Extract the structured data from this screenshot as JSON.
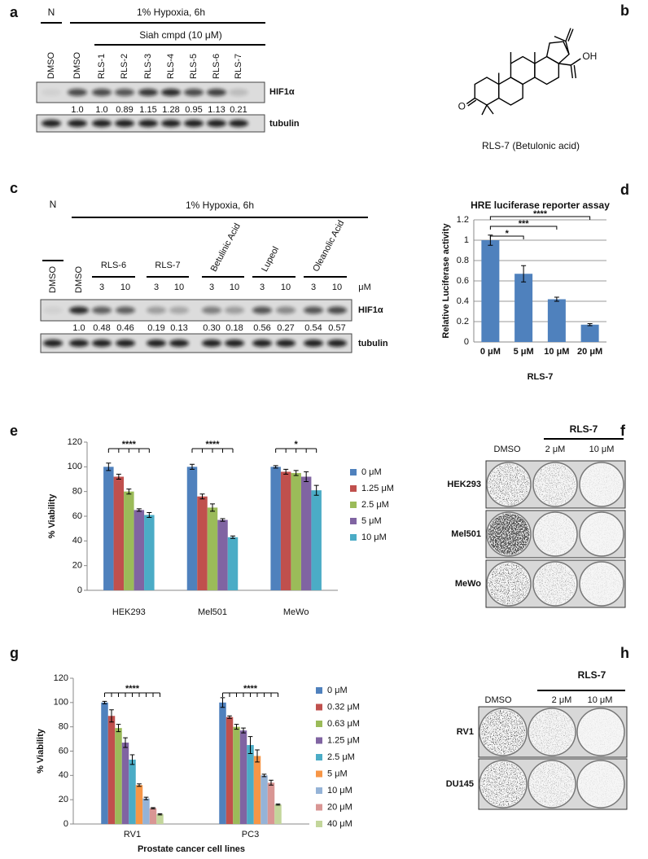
{
  "panels": {
    "a": {
      "label": "a",
      "control": "N",
      "condition": "1%  Hypoxia, 6h",
      "treatment": "Siah   cmpd   (10 μM)",
      "lanes": [
        "DMSO",
        "DMSO",
        "RLS-1",
        "RLS-2",
        "RLS-3",
        "RLS-4",
        "RLS-5",
        "RLS-6",
        "RLS-7"
      ],
      "rows": [
        "HIF1α",
        "tubulin"
      ],
      "quantification": [
        "1.0",
        "1.0",
        "0.89",
        "1.15",
        "1.28",
        "0.95",
        "1.13",
        "0.21"
      ]
    },
    "b": {
      "label": "b",
      "atoms": [
        "OH",
        "O"
      ],
      "caption": "RLS-7 (Betulonic acid)"
    },
    "c": {
      "label": "c",
      "control": "N",
      "condition": "1%  Hypoxia, 6h",
      "lanes": [
        "DMSO",
        "DMSO"
      ],
      "groups": [
        "RLS-6",
        "RLS-7",
        "Betulinic Acid",
        "Lupeol",
        "Oleanolic Acid"
      ],
      "doses": [
        "3",
        "10",
        "3",
        "10",
        "3",
        "10",
        "3",
        "10",
        "3",
        "10"
      ],
      "dose_unit": "μM",
      "rows": [
        "HIF1α",
        "tubulin"
      ],
      "quantification": [
        "1.0",
        "0.48",
        "0.46",
        "0.19",
        "0.13",
        "0.30",
        "0.18",
        "0.56",
        "0.27",
        "0.54",
        "0.57"
      ]
    },
    "f": {
      "label": "f",
      "treatment": "RLS-7",
      "columns": [
        "DMSO",
        "2 μM",
        "10 μM"
      ],
      "rows": [
        "HEK293",
        "Mel501",
        "MeWo"
      ]
    },
    "h": {
      "label": "h",
      "treatment": "RLS-7",
      "columns": [
        "DMSO",
        "2 μM",
        "10 μM"
      ],
      "rows": [
        "RV1",
        "DU145"
      ]
    }
  },
  "chart_data": [
    {
      "panel": "d",
      "type": "bar",
      "title": "HRE luciferase reporter assay",
      "x_label": "RLS-7",
      "y_label": "Relative Luciferase activity",
      "categories": [
        "0 μM",
        "5 μM",
        "10 μM",
        "20 μM"
      ],
      "values": [
        1,
        0.67,
        0.42,
        0.17
      ],
      "errors": [
        0.05,
        0.08,
        0.02,
        0.01
      ],
      "color": "#4f81bd",
      "ylim": [
        0,
        1.2
      ],
      "yticks": [
        0,
        0.2,
        0.4,
        0.6,
        0.8,
        1,
        1.2
      ],
      "grid": true,
      "annotations": [
        "*",
        "***",
        "****"
      ]
    },
    {
      "panel": "e",
      "type": "bar",
      "y_label": "% Viability",
      "categories": [
        "HEK293",
        "Mel501",
        "MeWo"
      ],
      "series": [
        {
          "name": "0 μM",
          "color": "#4f81bd",
          "values": [
            100,
            100,
            100
          ],
          "errors": [
            3,
            2,
            1
          ]
        },
        {
          "name": "1.25 μM",
          "color": "#c0504d",
          "values": [
            92,
            76,
            96
          ],
          "errors": [
            2,
            2,
            2
          ]
        },
        {
          "name": "2.5 μM",
          "color": "#9bbb59",
          "values": [
            80,
            67,
            95
          ],
          "errors": [
            2,
            3,
            2
          ]
        },
        {
          "name": "5 μM",
          "color": "#8064a2",
          "values": [
            65,
            57,
            92
          ],
          "errors": [
            1,
            1,
            4
          ]
        },
        {
          "name": "10 μM",
          "color": "#4bacc6",
          "values": [
            61,
            43,
            81
          ],
          "errors": [
            2,
            1,
            4
          ]
        }
      ],
      "ylim": [
        0,
        120
      ],
      "yticks": [
        0,
        20,
        40,
        60,
        80,
        100,
        120
      ],
      "grid": false,
      "legend": "right",
      "annotations": [
        "****",
        "****",
        "*"
      ]
    },
    {
      "panel": "g",
      "type": "bar",
      "x_label": "Prostate cancer cell lines",
      "y_label": "% Viability",
      "categories": [
        "RV1",
        "PC3"
      ],
      "series": [
        {
          "name": "0 μM",
          "color": "#4f81bd",
          "values": [
            100,
            100
          ],
          "errors": [
            1,
            4
          ]
        },
        {
          "name": "0.32 μM",
          "color": "#c0504d",
          "values": [
            89,
            88
          ],
          "errors": [
            5,
            1
          ]
        },
        {
          "name": "0.63 μM",
          "color": "#9bbb59",
          "values": [
            79,
            80
          ],
          "errors": [
            3,
            2
          ]
        },
        {
          "name": "1.25 μM",
          "color": "#8064a2",
          "values": [
            67,
            77
          ],
          "errors": [
            4,
            2
          ]
        },
        {
          "name": "2.5 μM",
          "color": "#4bacc6",
          "values": [
            53,
            65
          ],
          "errors": [
            4,
            7
          ]
        },
        {
          "name": "5 μM",
          "color": "#f79646",
          "values": [
            32,
            56
          ],
          "errors": [
            1,
            5
          ]
        },
        {
          "name": "10 μM",
          "color": "#95b3d7",
          "values": [
            21,
            40
          ],
          "errors": [
            1,
            1
          ]
        },
        {
          "name": "20 μM",
          "color": "#d99694",
          "values": [
            13,
            34
          ],
          "errors": [
            0.5,
            2
          ]
        },
        {
          "name": "40 μM",
          "color": "#c3d69b",
          "values": [
            8,
            16
          ],
          "errors": [
            0.5,
            0.5
          ]
        }
      ],
      "ylim": [
        0,
        120
      ],
      "yticks": [
        0,
        20,
        40,
        60,
        80,
        100,
        120
      ],
      "grid": false,
      "legend": "right",
      "annotations": [
        "****",
        "****"
      ]
    }
  ]
}
